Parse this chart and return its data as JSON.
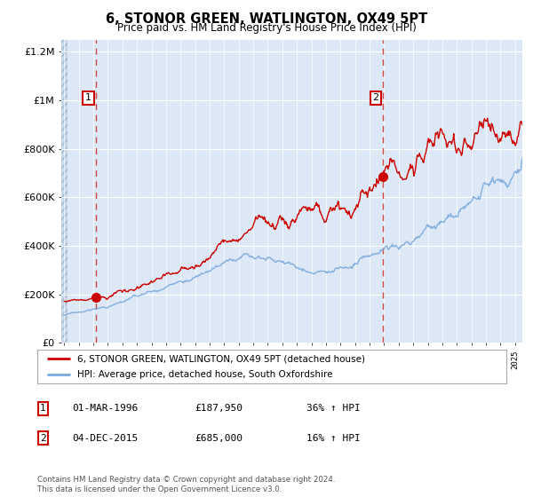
{
  "title": "6, STONOR GREEN, WATLINGTON, OX49 5PT",
  "subtitle": "Price paid vs. HM Land Registry's House Price Index (HPI)",
  "ylim": [
    0,
    1250000
  ],
  "yticks": [
    0,
    200000,
    400000,
    600000,
    800000,
    1000000,
    1200000
  ],
  "ytick_labels": [
    "£0",
    "£200K",
    "£400K",
    "£600K",
    "£800K",
    "£1M",
    "£1.2M"
  ],
  "sale1_date": 1996.17,
  "sale1_price": 187950,
  "sale1_label": "1",
  "sale2_date": 2015.92,
  "sale2_price": 685000,
  "sale2_label": "2",
  "legend_line1": "6, STONOR GREEN, WATLINGTON, OX49 5PT (detached house)",
  "legend_line2": "HPI: Average price, detached house, South Oxfordshire",
  "table_row1": [
    "1",
    "01-MAR-1996",
    "£187,950",
    "36% ↑ HPI"
  ],
  "table_row2": [
    "2",
    "04-DEC-2015",
    "£685,000",
    "16% ↑ HPI"
  ],
  "footer": "Contains HM Land Registry data © Crown copyright and database right 2024.\nThis data is licensed under the Open Government Licence v3.0.",
  "red_line_color": "#cc0000",
  "blue_line_color": "#7aaadd",
  "sale_marker_color": "#cc0000",
  "dashed_line_color": "#cc3333",
  "plot_bg_color": "#dce8f5",
  "hatch_bg_color": "#c8d8ea",
  "xmin": 1993.8,
  "xmax": 2025.5,
  "xstart": 1994.0
}
